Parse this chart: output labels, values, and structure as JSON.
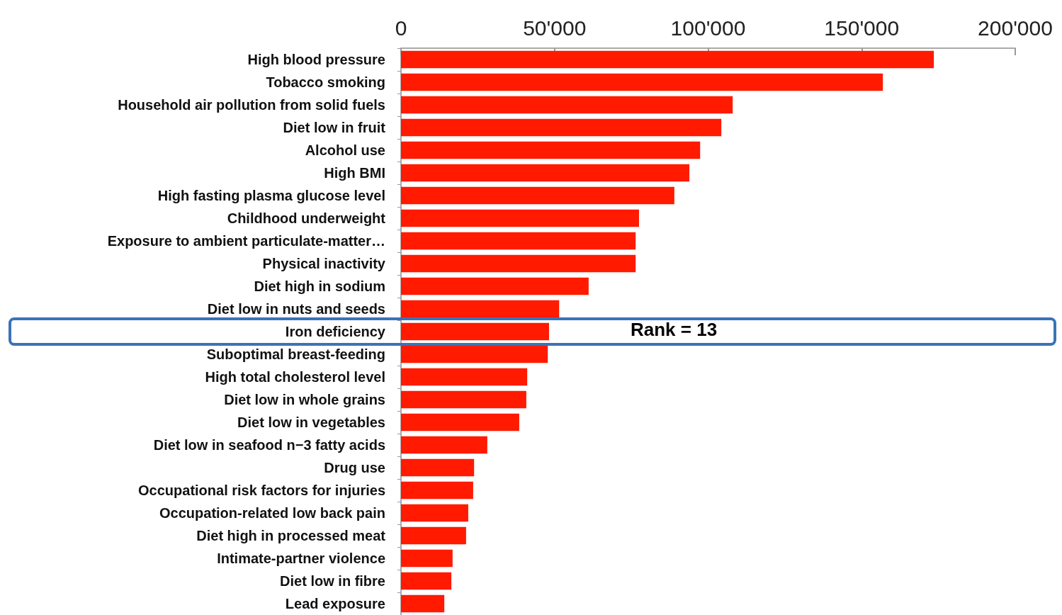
{
  "chart_data": {
    "type": "bar",
    "orientation": "horizontal",
    "categories": [
      "High blood pressure",
      "Tobacco smoking",
      "Household air pollution from solid fuels",
      "Diet low in fruit",
      "Alcohol use",
      "High BMI",
      "High fasting plasma glucose level",
      "Childhood underweight",
      "Exposure to ambient particulate-matter…",
      "Physical inactivity",
      "Diet high in sodium",
      "Diet low in nuts and seeds",
      "Iron deficiency",
      "Suboptimal breast-feeding",
      "High total cholesterol level",
      "Diet low in whole grains",
      "Diet low in vegetables",
      "Diet low in seafood n−3 fatty acids",
      "Drug use",
      "Occupational risk factors for injuries",
      "Occupation-related low back pain",
      "Diet high in processed meat",
      "Intimate-partner violence",
      "Diet low in fibre",
      "Lead exposure"
    ],
    "values": [
      173500,
      156900,
      108000,
      104300,
      97400,
      93900,
      89000,
      77500,
      76400,
      76400,
      61100,
      51500,
      48200,
      47800,
      41100,
      40800,
      38500,
      28100,
      23800,
      23500,
      21900,
      21200,
      16800,
      16400,
      14100
    ],
    "color": "#ff1a00",
    "xlim": [
      0,
      200000
    ],
    "xticks": [
      0,
      {
        "value": 50000,
        "label": "50'000"
      },
      {
        "value": 100000,
        "label": "100'000"
      },
      {
        "value": 150000,
        "label": "150'000"
      },
      {
        "value": 200000,
        "label": "200'000"
      }
    ],
    "grid": false,
    "annotations": [
      "Rank = 13"
    ]
  }
}
